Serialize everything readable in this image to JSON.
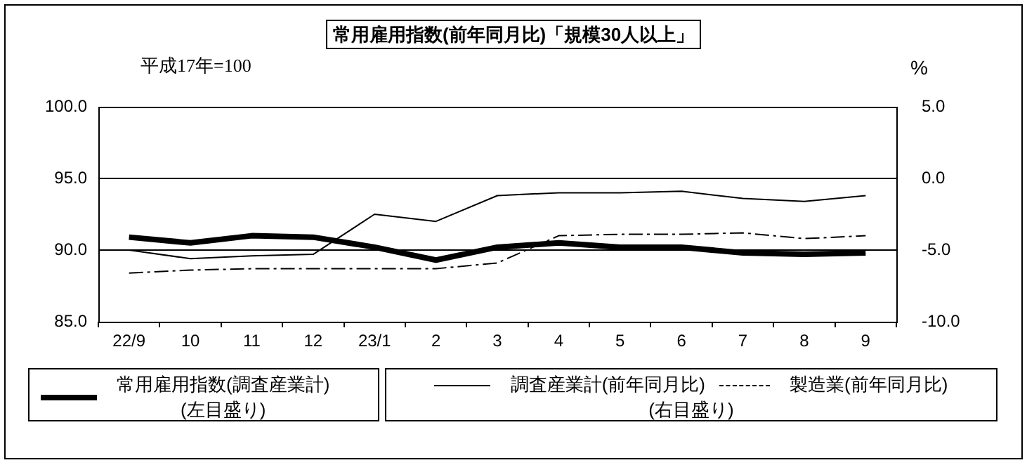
{
  "chart_data": {
    "type": "line",
    "title": "常用雇用指数(前年同月比)「規模30人以上」",
    "y2label": "%",
    "annotations": [
      "平成17年=100",
      "(右目盛り)"
    ],
    "categories": [
      "22/9",
      "10",
      "11",
      "12",
      "23/1",
      "2",
      "3",
      "4",
      "5",
      "6",
      "7",
      "8",
      "9"
    ],
    "series": [
      {
        "name": "常用雇用指数(調査産業計)\n(左目盛り)",
        "color": "#000000",
        "axis": "y",
        "line_style": "solid",
        "values": [
          90.9,
          90.5,
          91.0,
          90.9,
          90.2,
          89.3,
          90.2,
          90.5,
          90.2,
          90.2,
          89.8,
          89.7,
          89.8
        ]
      },
      {
        "name": "調査産業計(前年同月比)",
        "color": "#000000",
        "axis": "y2",
        "line_style": "solid",
        "values": [
          -5.0,
          -5.6,
          -5.4,
          -5.3,
          -2.5,
          -3.0,
          -1.2,
          -1.0,
          -1.0,
          -0.9,
          -1.4,
          -1.6,
          -1.2
        ]
      },
      {
        "name": "製造業(前年同月比)",
        "color": "#000000",
        "axis": "y2",
        "line_style": "dashed",
        "values": [
          -6.6,
          -6.4,
          -6.3,
          -6.3,
          -6.3,
          -6.3,
          -5.9,
          -4.0,
          -3.9,
          -3.9,
          -3.8,
          -4.2,
          -4.0
        ]
      }
    ],
    "ylim": [
      85,
      100
    ],
    "yticks": [
      {
        "value": 85,
        "label": "85.0"
      },
      {
        "value": 90,
        "label": "90.0"
      },
      {
        "value": 95,
        "label": "95.0"
      },
      {
        "value": 100,
        "label": "100.0"
      }
    ],
    "y2lim": [
      -10,
      5
    ],
    "y2ticks": [
      {
        "value": -10,
        "label": "-10.0"
      },
      {
        "value": -5,
        "label": "-5.0"
      },
      {
        "value": 0,
        "label": "0.0"
      },
      {
        "value": 5,
        "label": "5.0"
      }
    ],
    "grid": "y",
    "legend": "bottom",
    "marker": "none"
  }
}
